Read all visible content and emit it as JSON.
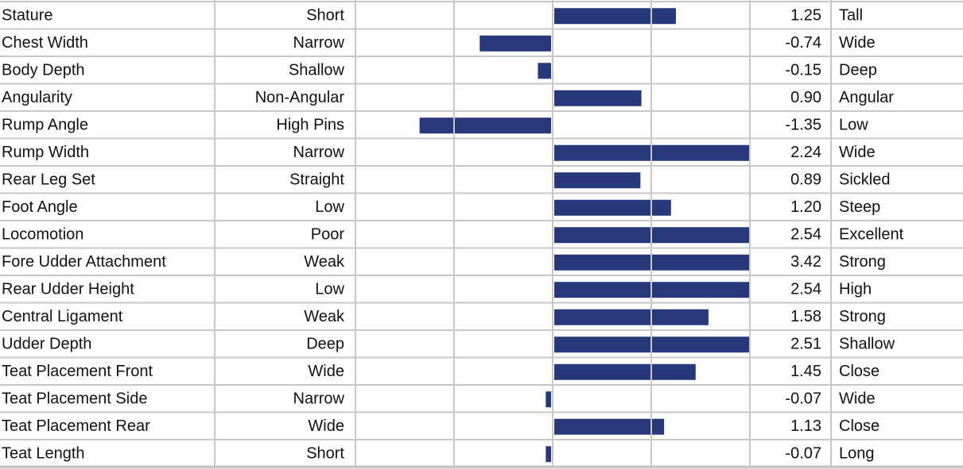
{
  "chart_data": {
    "type": "bar",
    "orientation": "horizontal",
    "categories": [
      "Stature",
      "Chest Width",
      "Body Depth",
      "Angularity",
      "Rump Angle",
      "Rump Width",
      "Rear Leg Set",
      "Foot Angle",
      "Locomotion",
      "Fore Udder Attachment",
      "Rear Udder Height",
      "Central Ligament",
      "Udder Depth",
      "Teat Placement Front",
      "Teat Placement Side",
      "Teat Placement Rear",
      "Teat Length"
    ],
    "low_labels": [
      "Short",
      "Narrow",
      "Shallow",
      "Non-Angular",
      "High Pins",
      "Narrow",
      "Straight",
      "Low",
      "Poor",
      "Weak",
      "Low",
      "Weak",
      "Deep",
      "Wide",
      "Narrow",
      "Wide",
      "Short"
    ],
    "high_labels": [
      "Tall",
      "Wide",
      "Deep",
      "Angular",
      "Low",
      "Wide",
      "Sickled",
      "Steep",
      "Excellent",
      "Strong",
      "High",
      "Strong",
      "Shallow",
      "Close",
      "Wide",
      "Close",
      "Long"
    ],
    "values": [
      1.25,
      -0.74,
      -0.15,
      0.9,
      -1.35,
      2.24,
      0.89,
      1.2,
      2.54,
      3.42,
      2.54,
      1.58,
      2.51,
      1.45,
      -0.07,
      1.13,
      -0.07
    ],
    "value_labels": [
      "1.25",
      "-0.74",
      "-0.15",
      "0.90",
      "-1.35",
      "2.24",
      "0.89",
      "1.20",
      "2.54",
      "3.42",
      "2.54",
      "1.58",
      "2.51",
      "1.45",
      "-0.07",
      "1.13",
      "-0.07"
    ],
    "color": "#27397a",
    "xlim": [
      -2,
      2
    ],
    "xticks": [
      -2,
      -1,
      0,
      1,
      2
    ],
    "grid": true
  }
}
